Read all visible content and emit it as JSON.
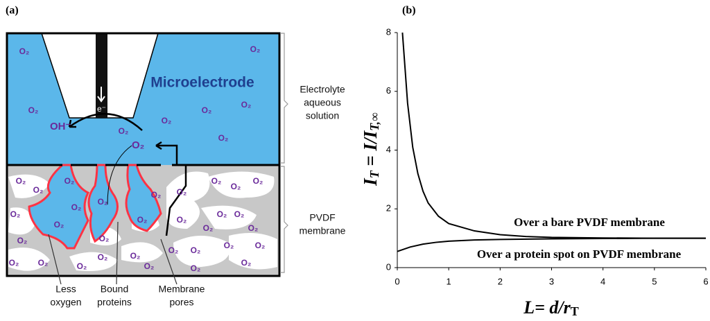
{
  "panel_a": {
    "label": "(a)",
    "electrode": "Microelectrode",
    "electron": "e⁻",
    "hydroxide": "OH⁻",
    "oxygen": "O₂",
    "electrolyte": [
      "Electrolyte",
      "aqueous",
      "solution"
    ],
    "membrane": [
      "PVDF",
      "membrane"
    ],
    "callouts": [
      [
        "Less",
        "oxygen"
      ],
      [
        "Bound",
        "proteins"
      ],
      [
        "Membrane",
        "pores"
      ]
    ]
  },
  "chart_data": {
    "type": "line",
    "label": "(b)",
    "y_label": [
      "I",
      "T",
      " = ",
      "I/I",
      "T,∞"
    ],
    "x_label": [
      "L= d/r",
      "T"
    ],
    "xlim": [
      0,
      6
    ],
    "xticks": [
      0,
      1,
      2,
      3,
      4,
      5,
      6
    ],
    "ylim": [
      0,
      8
    ],
    "yticks": [
      0,
      2,
      4,
      6,
      8
    ],
    "grid": false,
    "series": [
      {
        "name": "Over a bare PVDF membrane",
        "color": "#000000",
        "x": [
          0.1,
          0.15,
          0.2,
          0.3,
          0.4,
          0.5,
          0.6,
          0.8,
          1,
          1.5,
          2,
          2.5,
          3,
          4,
          5,
          6
        ],
        "values": [
          8,
          6.8,
          5.6,
          4.1,
          3.2,
          2.6,
          2.2,
          1.75,
          1.5,
          1.25,
          1.12,
          1.06,
          1.03,
          1.01,
          1,
          1
        ]
      },
      {
        "name": "Over a protein spot on PVDF membrane",
        "color": "#000000",
        "x": [
          0,
          0.25,
          0.5,
          0.75,
          1,
          1.5,
          2,
          3,
          4,
          5,
          6
        ],
        "values": [
          0.55,
          0.7,
          0.8,
          0.86,
          0.9,
          0.94,
          0.96,
          0.98,
          0.99,
          1,
          1
        ]
      }
    ]
  }
}
